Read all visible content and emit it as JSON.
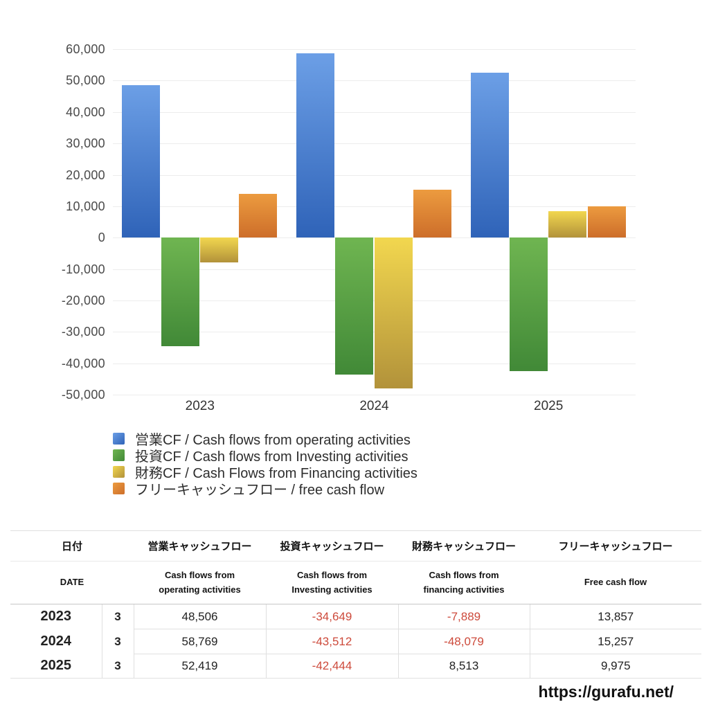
{
  "chart_data": {
    "type": "bar",
    "title": "",
    "xlabel": "",
    "ylabel": "",
    "categories": [
      "2023",
      "2024",
      "2025"
    ],
    "series": [
      {
        "name": "営業CF / Cash flows from operating activities",
        "values": [
          48506,
          58769,
          52419
        ],
        "color_top": "#6C9FE6",
        "color_bottom": "#2F63B8"
      },
      {
        "name": "投資CF / Cash flows from Investing activities",
        "values": [
          -34649,
          -43512,
          -42444
        ],
        "color_top": "#6FB551",
        "color_bottom": "#418937"
      },
      {
        "name": "財務CF / Cash Flows from Financing activities",
        "values": [
          -7889,
          -48079,
          8513
        ],
        "color_top": "#F2D74F",
        "color_bottom": "#B2923A"
      },
      {
        "name": "フリーキャッシュフロー / free cash flow",
        "values": [
          13857,
          15257,
          9975
        ],
        "color_top": "#EC9B3F",
        "color_bottom": "#CD6E2A"
      }
    ],
    "ylim": [
      -50000,
      60000
    ],
    "ytick_step": 10000,
    "grid": true,
    "legend_position": "bottom-left",
    "gridline_color": "#ececec"
  },
  "table": {
    "headers_jp": {
      "date": "日付",
      "operating": "営業キャッシュフロー",
      "investing": "投資キャッシュフロー",
      "financing": "財務キャッシュフロー",
      "fcf": "フリーキャッシュフロー"
    },
    "headers_en": {
      "date": "DATE",
      "operating": "Cash flows from\noperating activities",
      "investing": "Cash flows from\nInvesting activities",
      "financing": "Cash flows from\nfinancing activities",
      "fcf": "Free cash flow"
    },
    "rows": [
      {
        "year": "2023",
        "month": "3",
        "operating": "48,506",
        "investing": "-34,649",
        "financing": "-7,889",
        "fcf": "13,857"
      },
      {
        "year": "2024",
        "month": "3",
        "operating": "58,769",
        "investing": "-43,512",
        "financing": "-48,079",
        "fcf": "15,257"
      },
      {
        "year": "2025",
        "month": "3",
        "operating": "52,419",
        "investing": "-42,444",
        "financing": "8,513",
        "fcf": "9,975"
      }
    ],
    "negative_color": "#cd4a3b"
  },
  "footer": {
    "site_url": "https://gurafu.net/"
  }
}
